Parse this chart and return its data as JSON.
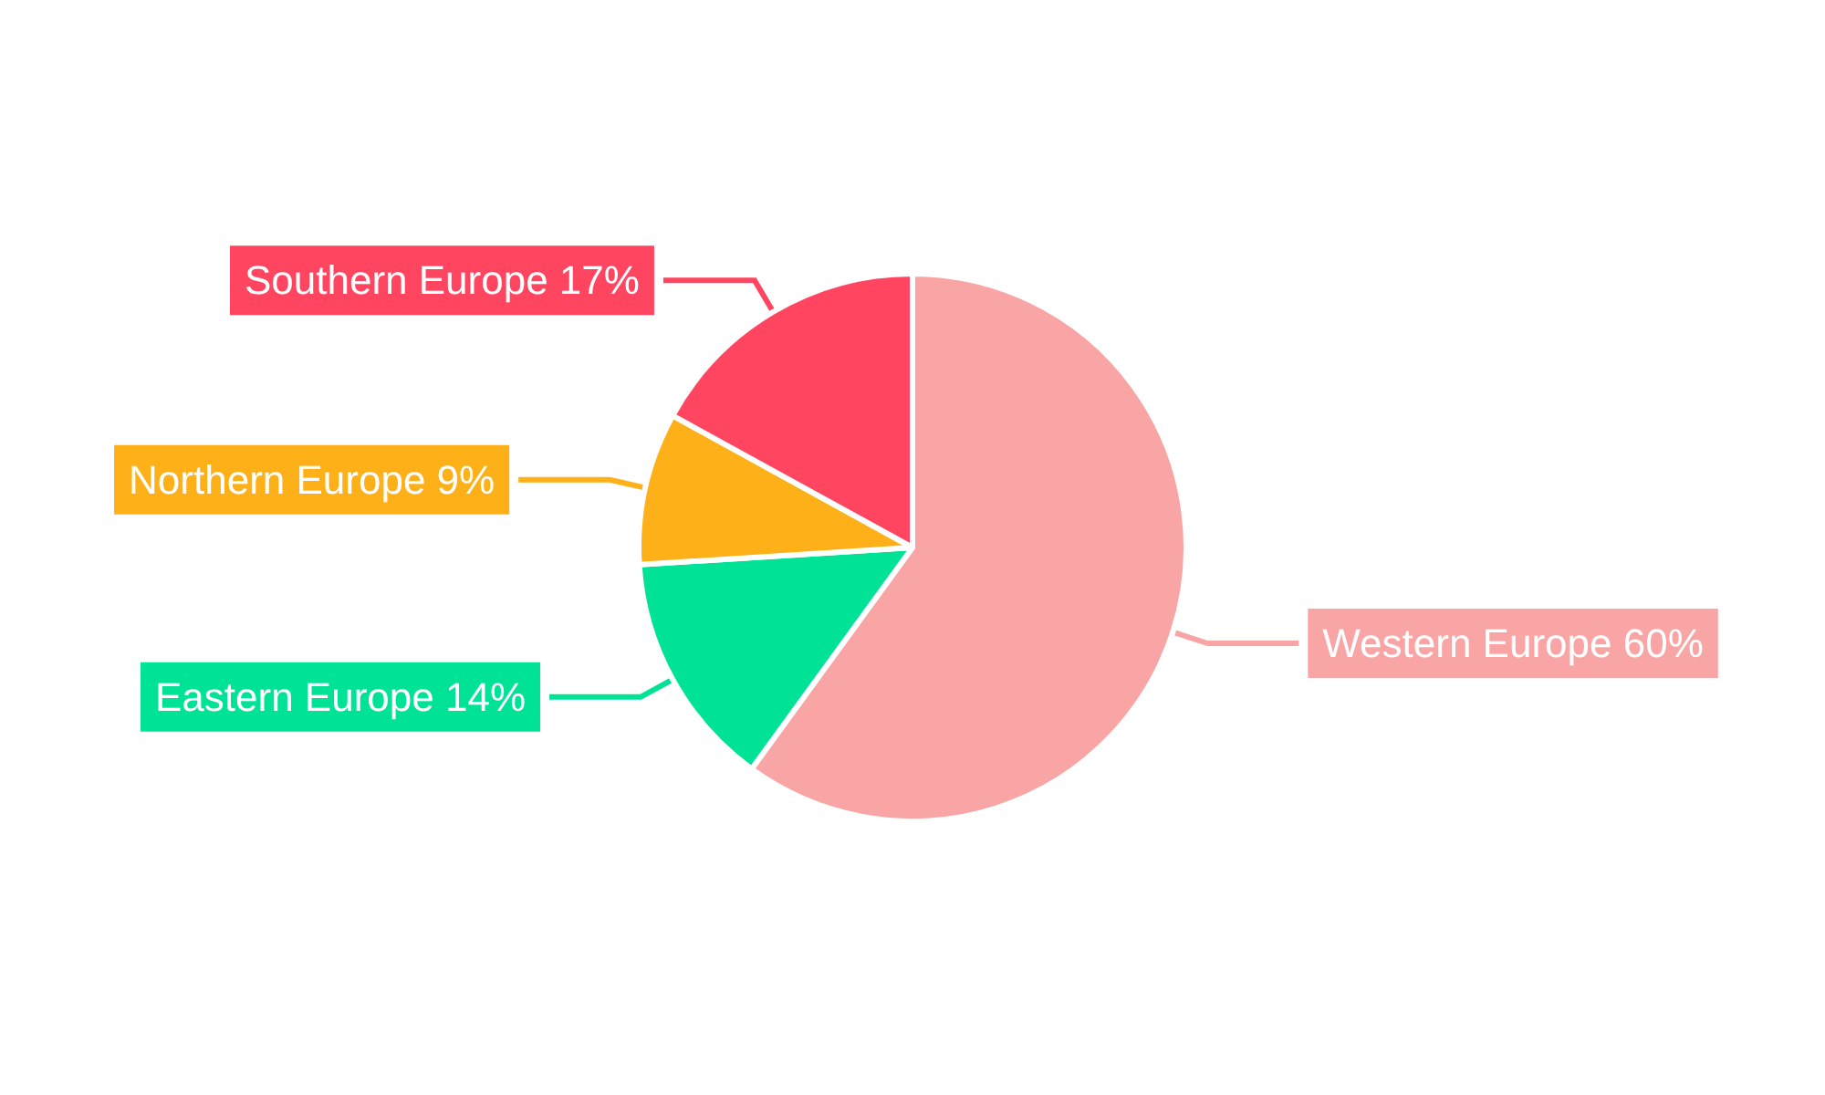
{
  "chart_data": {
    "type": "pie",
    "categories": [
      "Western Europe",
      "Eastern Europe",
      "Northern Europe",
      "Southern Europe"
    ],
    "values": [
      60,
      14,
      9,
      17
    ],
    "colors": [
      "#f9a5a5",
      "#00e396",
      "#feb019",
      "#ff4560"
    ],
    "value_labels": [
      "60%",
      "14%",
      "9%",
      "17%"
    ],
    "legend": false
  }
}
